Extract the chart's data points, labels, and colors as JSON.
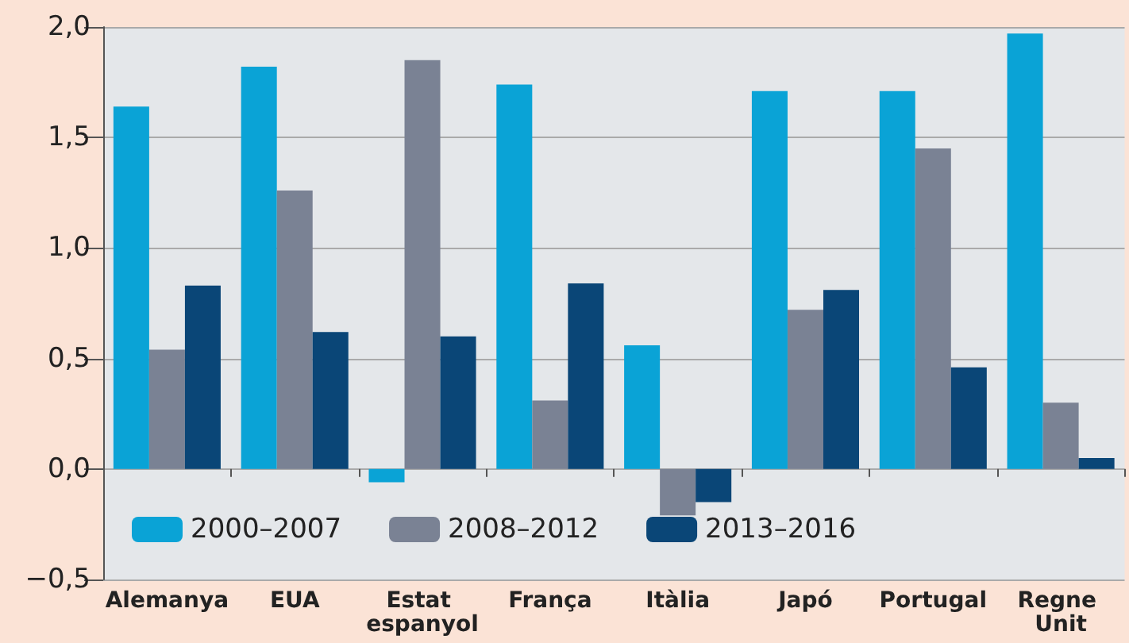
{
  "chart_data": {
    "type": "bar",
    "categories": [
      "Alemanya",
      "EUA",
      "Estat espanyol",
      "França",
      "Itàlia",
      "Japó",
      "Portugal",
      "Regne Unit"
    ],
    "series": [
      {
        "name": "2000–2007",
        "color": "#0aa3d6",
        "values": [
          1.64,
          1.82,
          -0.06,
          1.74,
          0.56,
          1.71,
          1.71,
          1.97
        ]
      },
      {
        "name": "2008–2012",
        "color": "#7a8294",
        "values": [
          0.54,
          1.26,
          1.85,
          0.31,
          -0.21,
          0.72,
          1.45,
          0.3
        ]
      },
      {
        "name": "2013–2016",
        "color": "#0a4677",
        "values": [
          0.83,
          0.62,
          0.6,
          0.84,
          -0.15,
          0.81,
          0.46,
          0.05
        ]
      }
    ],
    "ylim": [
      -0.5,
      2.0
    ],
    "yticks": [
      {
        "value": -0.5,
        "label": "−0,5"
      },
      {
        "value": 0,
        "label": "0,0"
      },
      {
        "value": 0.5,
        "label": "0,5"
      },
      {
        "value": 1,
        "label": "1,0"
      },
      {
        "value": 1.5,
        "label": "1,5"
      },
      {
        "value": 2,
        "label": "2,0"
      }
    ],
    "grid": "y",
    "legend": "bottom left"
  }
}
